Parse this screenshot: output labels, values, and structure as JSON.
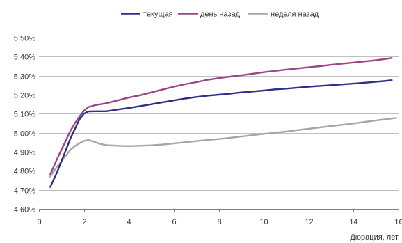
{
  "chart_data": {
    "type": "line",
    "title": "",
    "xlabel": "Дюрация, лет",
    "ylabel": "",
    "xlim": [
      0,
      16
    ],
    "ylim": [
      4.6,
      5.5
    ],
    "x_ticks": [
      0,
      2,
      4,
      6,
      8,
      10,
      12,
      14,
      16
    ],
    "x_tick_labels": [
      "0",
      "2",
      "4",
      "6",
      "8",
      "10",
      "12",
      "14",
      "16"
    ],
    "y_ticks": [
      4.6,
      4.7,
      4.8,
      4.9,
      5.0,
      5.1,
      5.2,
      5.3,
      5.4,
      5.5
    ],
    "y_tick_labels": [
      "4,60%",
      "4,70%",
      "4,80%",
      "4,90%",
      "5,00%",
      "5,10%",
      "5,20%",
      "5,30%",
      "5,40%",
      "5,50%"
    ],
    "grid": "horizontal",
    "legend_position": "top",
    "series": [
      {
        "name": "текущая",
        "color": "#2E2F86",
        "points": [
          [
            0.5,
            4.715
          ],
          [
            0.8,
            4.79
          ],
          [
            1.0,
            4.85
          ],
          [
            1.2,
            4.91
          ],
          [
            1.4,
            4.97
          ],
          [
            1.6,
            5.02
          ],
          [
            1.8,
            5.07
          ],
          [
            2.0,
            5.1
          ],
          [
            2.2,
            5.112
          ],
          [
            2.5,
            5.113
          ],
          [
            3.0,
            5.113
          ],
          [
            3.5,
            5.122
          ],
          [
            4.0,
            5.13
          ],
          [
            4.5,
            5.14
          ],
          [
            5.0,
            5.15
          ],
          [
            5.5,
            5.16
          ],
          [
            6.0,
            5.17
          ],
          [
            6.5,
            5.18
          ],
          [
            7.0,
            5.188
          ],
          [
            7.5,
            5.195
          ],
          [
            8.0,
            5.2
          ],
          [
            8.5,
            5.205
          ],
          [
            9.0,
            5.212
          ],
          [
            9.5,
            5.217
          ],
          [
            10.0,
            5.222
          ],
          [
            10.5,
            5.228
          ],
          [
            11.0,
            5.232
          ],
          [
            11.5,
            5.237
          ],
          [
            12.0,
            5.242
          ],
          [
            12.5,
            5.246
          ],
          [
            13.0,
            5.25
          ],
          [
            13.5,
            5.254
          ],
          [
            14.0,
            5.258
          ],
          [
            14.5,
            5.263
          ],
          [
            15.0,
            5.268
          ],
          [
            15.5,
            5.273
          ],
          [
            15.7,
            5.276
          ]
        ]
      },
      {
        "name": "день назад",
        "color": "#9B4589",
        "points": [
          [
            0.5,
            4.78
          ],
          [
            0.8,
            4.86
          ],
          [
            1.0,
            4.91
          ],
          [
            1.2,
            4.96
          ],
          [
            1.4,
            5.01
          ],
          [
            1.6,
            5.05
          ],
          [
            1.8,
            5.085
          ],
          [
            2.0,
            5.115
          ],
          [
            2.2,
            5.135
          ],
          [
            2.5,
            5.145
          ],
          [
            3.0,
            5.155
          ],
          [
            3.5,
            5.17
          ],
          [
            4.0,
            5.185
          ],
          [
            4.5,
            5.197
          ],
          [
            5.0,
            5.212
          ],
          [
            5.5,
            5.227
          ],
          [
            6.0,
            5.242
          ],
          [
            6.5,
            5.255
          ],
          [
            7.0,
            5.266
          ],
          [
            7.5,
            5.278
          ],
          [
            8.0,
            5.287
          ],
          [
            8.5,
            5.295
          ],
          [
            9.0,
            5.302
          ],
          [
            9.5,
            5.31
          ],
          [
            10.0,
            5.318
          ],
          [
            10.5,
            5.325
          ],
          [
            11.0,
            5.332
          ],
          [
            11.5,
            5.338
          ],
          [
            12.0,
            5.344
          ],
          [
            12.5,
            5.35
          ],
          [
            13.0,
            5.357
          ],
          [
            13.5,
            5.363
          ],
          [
            14.0,
            5.369
          ],
          [
            14.5,
            5.375
          ],
          [
            15.0,
            5.381
          ],
          [
            15.5,
            5.389
          ],
          [
            15.7,
            5.393
          ]
        ]
      },
      {
        "name": "неделя назад",
        "color": "#A6A6A6",
        "points": [
          [
            0.5,
            4.77
          ],
          [
            0.8,
            4.82
          ],
          [
            1.0,
            4.85
          ],
          [
            1.2,
            4.88
          ],
          [
            1.4,
            4.91
          ],
          [
            1.6,
            4.93
          ],
          [
            1.8,
            4.945
          ],
          [
            2.0,
            4.957
          ],
          [
            2.2,
            4.962
          ],
          [
            2.4,
            4.955
          ],
          [
            2.7,
            4.942
          ],
          [
            3.0,
            4.935
          ],
          [
            3.5,
            4.932
          ],
          [
            4.0,
            4.93
          ],
          [
            4.5,
            4.932
          ],
          [
            5.0,
            4.934
          ],
          [
            5.5,
            4.938
          ],
          [
            6.0,
            4.944
          ],
          [
            6.5,
            4.95
          ],
          [
            7.0,
            4.956
          ],
          [
            7.5,
            4.962
          ],
          [
            8.0,
            4.967
          ],
          [
            8.5,
            4.973
          ],
          [
            9.0,
            4.98
          ],
          [
            9.5,
            4.987
          ],
          [
            10.0,
            4.994
          ],
          [
            10.5,
            5.0
          ],
          [
            11.0,
            5.006
          ],
          [
            11.5,
            5.014
          ],
          [
            12.0,
            5.021
          ],
          [
            12.5,
            5.028
          ],
          [
            13.0,
            5.035
          ],
          [
            13.5,
            5.042
          ],
          [
            14.0,
            5.049
          ],
          [
            14.5,
            5.057
          ],
          [
            15.0,
            5.065
          ],
          [
            15.5,
            5.072
          ],
          [
            15.9,
            5.078
          ]
        ]
      }
    ]
  }
}
